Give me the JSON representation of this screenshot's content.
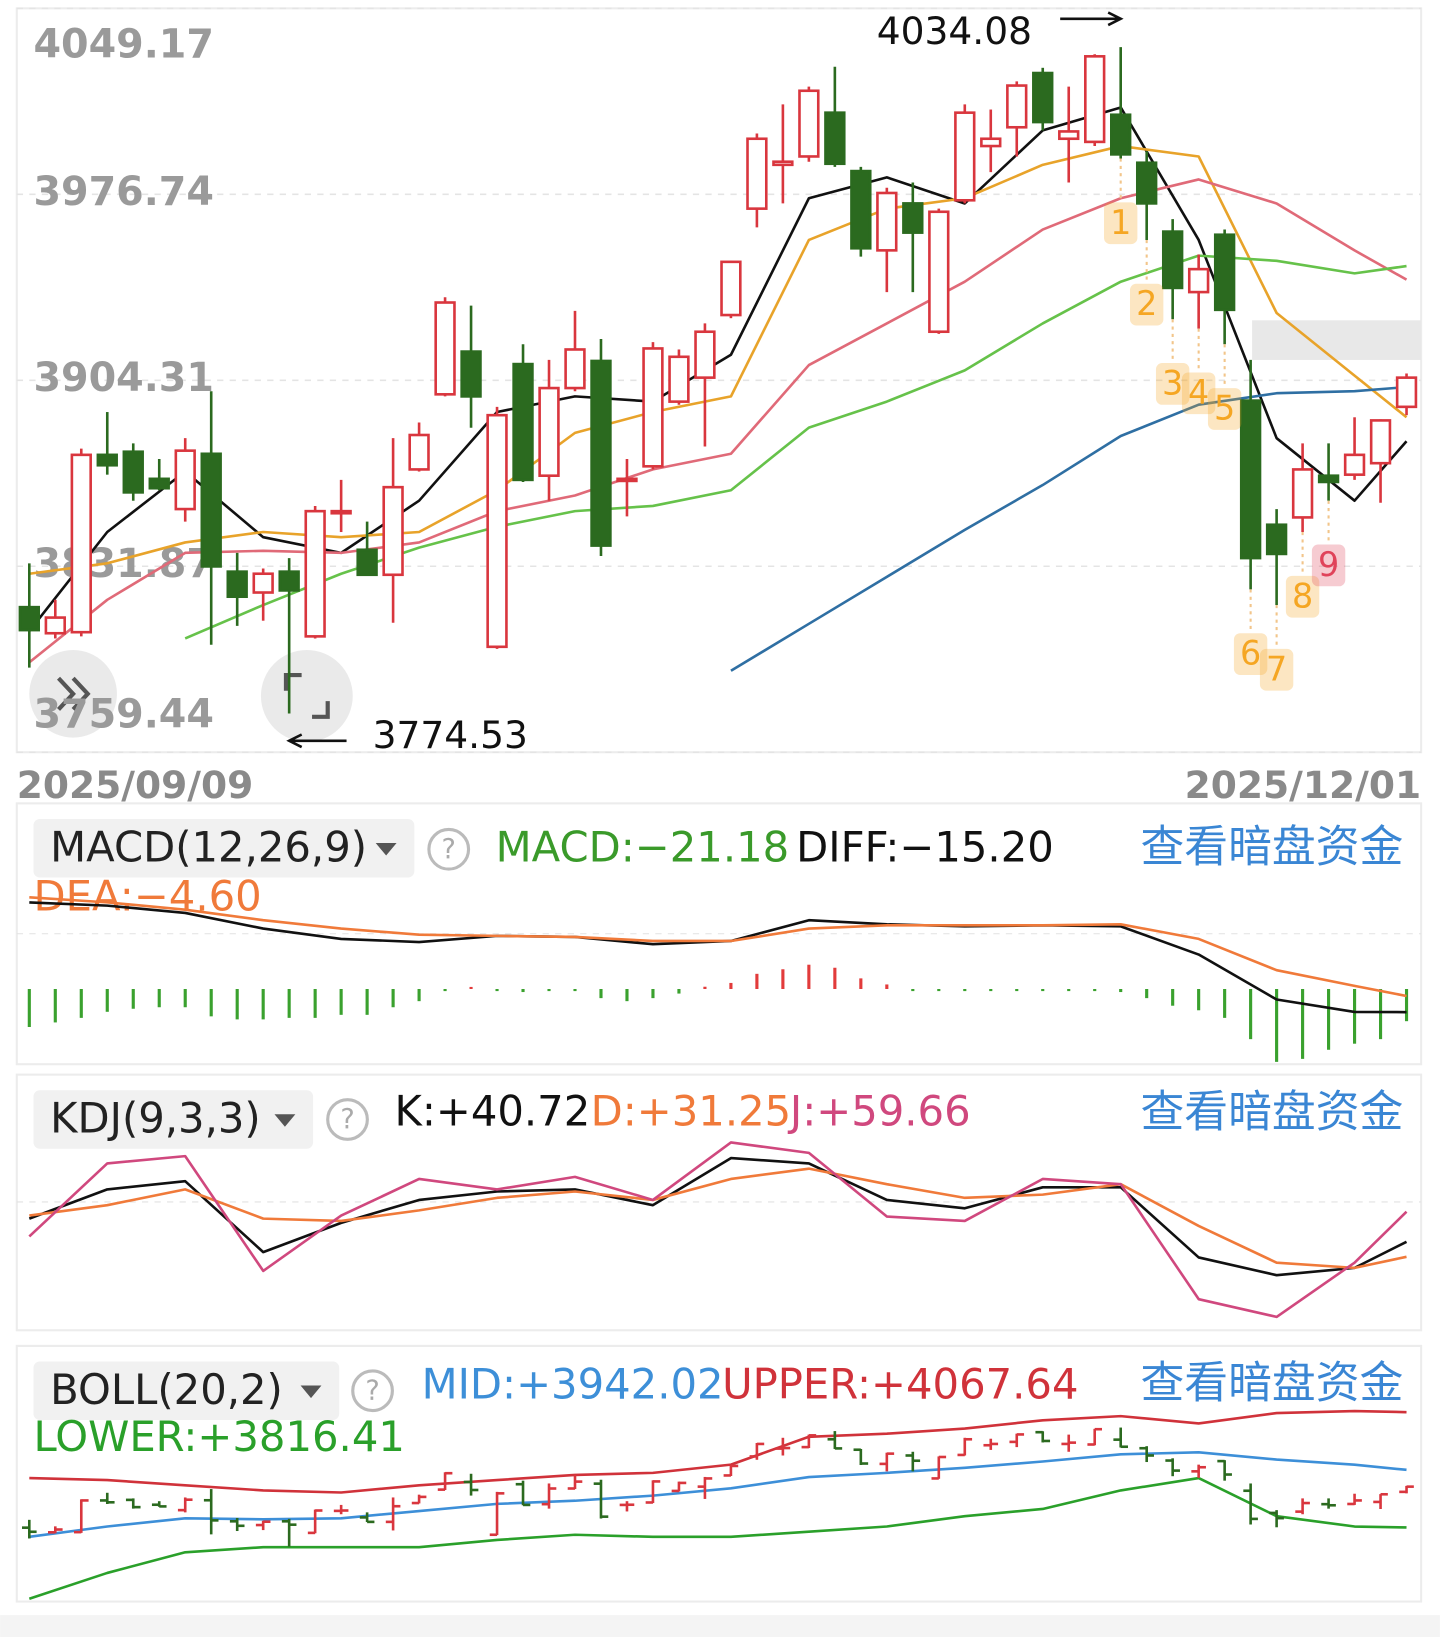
{
  "chart_data": [
    {
      "type": "candlestick",
      "categories": [
        "2025/09/09",
        null,
        null,
        null,
        null,
        null,
        null,
        null,
        null,
        null,
        null,
        null,
        null,
        null,
        null,
        null,
        null,
        null,
        null,
        null,
        null,
        null,
        null,
        null,
        null,
        null,
        null,
        null,
        null,
        null,
        null,
        null,
        null,
        null,
        null,
        null,
        null,
        null,
        null,
        null,
        null,
        null,
        null,
        null,
        null,
        null,
        null,
        null,
        null,
        null,
        null,
        null,
        null,
        "2025/12/01"
      ],
      "open": [
        3815.95,
        3805.79,
        3806.2,
        3875.27,
        3876.49,
        3865.93,
        3854.15,
        3875.68,
        3829.78,
        3821.65,
        3829.78,
        3804.57,
        3852.52,
        3838.3,
        3828.56,
        3869.59,
        3898.84,
        3915.49,
        3800.51,
        3910.62,
        3867.15,
        3901.28,
        3911.84,
        3865.52,
        3870.8,
        3896.0,
        3905.34,
        3929.72,
        3971.16,
        3988.23,
        3991.48,
        4008.54,
        3985.79,
        3954.91,
        3973.2,
        3923.22,
        3974.41,
        3995.54,
        4002.85,
        4023.98,
        3998.38,
        3997.16,
        4007.73,
        3989.04,
        3962.22,
        3938.66,
        3961.0,
        3896.4,
        3848.05,
        3850.9,
        3867.15,
        3867.55,
        3872.02,
        3893.97
      ],
      "high": [
        3833.02,
        3818.8,
        3877.71,
        3891.94,
        3879.74,
        3873.65,
        3881.77,
        3900.06,
        3837.08,
        3831.0,
        3835.06,
        3855.37,
        3865.52,
        3849.27,
        3881.77,
        3887.87,
        3936.63,
        3933.38,
        3893.97,
        3918.34,
        3912.24,
        3931.34,
        3920.37,
        3873.65,
        3919.15,
        3916.31,
        3926.47,
        3950.85,
        4000.42,
        4011.79,
        4018.7,
        4026.42,
        3987.42,
        3979.29,
        3981.32,
        3971.16,
        4011.79,
        4009.76,
        4020.73,
        4026.01,
        4018.7,
        4031.29,
        4034.08,
        3993.51,
        3967.1,
        3953.28,
        3963.03,
        3912.24,
        3854.15,
        3879.74,
        3879.74,
        3889.9,
        3889.09,
        3906.96
      ],
      "low": [
        3792.39,
        3803.76,
        3804.57,
        3867.55,
        3857.4,
        3861.46,
        3849.27,
        3801.32,
        3808.64,
        3810.67,
        3774.53,
        3803.76,
        3845.21,
        3828.15,
        3809.86,
        3868.77,
        3898.03,
        3885.84,
        3799.7,
        3864.71,
        3857.4,
        3900.06,
        3835.87,
        3851.3,
        3869.59,
        3894.78,
        3878.52,
        3928.5,
        3963.85,
        3973.2,
        3989.44,
        3987.42,
        3952.47,
        3938.66,
        3938.66,
        3922.4,
        3973.2,
        3985.38,
        3991.48,
        4001.64,
        3981.32,
        3995.54,
        3990.67,
        3958.97,
        3928.09,
        3924.43,
        3918.34,
        3822.87,
        3816.77,
        3845.21,
        3857.4,
        3865.52,
        3856.59,
        3890.72
      ],
      "close": [
        3807.01,
        3811.89,
        3875.27,
        3871.21,
        3860.65,
        3862.27,
        3876.9,
        3831.81,
        3820.02,
        3828.97,
        3822.46,
        3853.34,
        3853.34,
        3828.56,
        3862.68,
        3883.0,
        3934.6,
        3898.03,
        3890.72,
        3865.52,
        3901.28,
        3916.31,
        3839.93,
        3865.93,
        3916.71,
        3913.46,
        3923.22,
        3950.44,
        3998.38,
        3989.44,
        4017.07,
        3988.64,
        3955.72,
        3977.26,
        3961.82,
        3969.94,
        4008.54,
        3998.38,
        4019.1,
        4004.88,
        4001.23,
        4030.48,
        3992.29,
        3973.2,
        3940.29,
        3947.6,
        3931.75,
        3835.06,
        3836.68,
        3869.59,
        3864.71,
        3875.27,
        3888.68,
        3905.34
      ],
      "up_color": "#d9363e",
      "down_color": "#2b6a1f",
      "ylim": [
        3759.44,
        4049.17
      ],
      "yticks": [
        4049.17,
        3976.74,
        3904.31,
        3831.87,
        3759.44
      ],
      "grid": true,
      "high_label": 4034.08,
      "low_label": 3774.53,
      "x": [
        0,
        3,
        6,
        9,
        12,
        15,
        18,
        21,
        24,
        27,
        30,
        33,
        36,
        39,
        42,
        45,
        48,
        51,
        53
      ],
      "series": [
        {
          "color": "#111111",
          "values": [
            3806.61,
            3845.21,
            3868.77,
            3843.17,
            3837.08,
            3857.4,
            3891.94,
            3898.03,
            3896.0,
            3914.27,
            3975.22,
            3983.35,
            3973.2,
            4001.64,
            4010.57,
            3958.97,
            3881.77,
            3857.4,
            3880.56
          ]
        },
        {
          "color": "#e8a32a",
          "values": [
            3828.97,
            3833.02,
            3841.14,
            3845.21,
            3843.17,
            3845.21,
            3861.46,
            3883.81,
            3891.94,
            3898.03,
            3958.97,
            3971.16,
            3975.22,
            3988.23,
            3995.54,
            3991.48,
            3930.53,
            3906.15,
            3889.9
          ]
        },
        {
          "color": "#e06a78",
          "values": [
            3794.42,
            3818.8,
            3837.08,
            3837.89,
            3837.08,
            3841.14,
            3853.34,
            3859.43,
            3869.59,
            3875.68,
            3910.22,
            3926.47,
            3942.72,
            3963.03,
            3975.22,
            3982.54,
            3973.2,
            3954.91,
            3943.53
          ]
        },
        {
          "color": "#66c24a",
          "values": [
            null,
            null,
            3803.76,
            3816.77,
            3828.97,
            3839.12,
            3847.24,
            3853.34,
            3855.37,
            3861.46,
            3885.84,
            3896.0,
            3908.18,
            3926.47,
            3942.72,
            3952.88,
            3950.85,
            3945.97,
            3948.81
          ]
        },
        {
          "color": "#2f6fa3",
          "values": [
            null,
            null,
            null,
            null,
            null,
            null,
            null,
            null,
            null,
            3791.17,
            3809.45,
            3827.74,
            3846.02,
            3863.49,
            3882.59,
            3894.78,
            3899.25,
            3900.06,
            3901.68
          ]
        }
      ],
      "markers": [
        {
          "text": "1",
          "index": 42,
          "color": "#f5a623"
        },
        {
          "text": "2",
          "index": 43,
          "color": "#f5a623"
        },
        {
          "text": "3",
          "index": 44,
          "color": "#f5a623"
        },
        {
          "text": "4",
          "index": 45,
          "color": "#f5a623"
        },
        {
          "text": "5",
          "index": 46,
          "color": "#f5a623"
        },
        {
          "text": "6",
          "index": 47,
          "color": "#f5a623"
        },
        {
          "text": "7",
          "index": 48,
          "color": "#f5a623"
        },
        {
          "text": "8",
          "index": 49,
          "color": "#f5a623"
        },
        {
          "text": "9",
          "index": 50,
          "color": "#e0435a"
        }
      ]
    },
    {
      "type": "macd",
      "title": "MACD(12,26,9)",
      "link": "查看暗盘资金",
      "ylim": [
        -49.5,
        75.5
      ],
      "histogram": {
        "label": "MACD:−21.18",
        "label_color": "#3a9a2a",
        "up_color": "#e23b3b",
        "down_color": "#3aa12e",
        "values": [
          -25,
          -22,
          -19,
          -15,
          -13,
          -12,
          -12,
          -18,
          -20,
          -20,
          -19,
          -19,
          -17,
          -17,
          -12,
          -8,
          -1,
          0.5,
          -1,
          -2,
          -1,
          -1,
          -6,
          -8,
          -6,
          -3,
          1.5,
          4,
          10,
          13,
          16,
          14,
          7,
          3,
          -0.5,
          -1,
          -1,
          -1,
          -1,
          -1,
          -1,
          -1,
          -2,
          -6,
          -11,
          -14,
          -19,
          -33,
          -48,
          -46,
          -40,
          -36,
          -33,
          -21.18
        ]
      },
      "x": [
        0,
        3,
        6,
        9,
        12,
        15,
        18,
        21,
        24,
        27,
        30,
        33,
        36,
        39,
        42,
        45,
        48,
        51,
        53
      ],
      "series": [
        {
          "label": "DIFF:−15.20",
          "color": "#111111",
          "values": [
            57.0,
            54.9,
            50.1,
            39.8,
            33.0,
            30.9,
            35.0,
            34.3,
            29.5,
            31.6,
            45.3,
            42.6,
            41.2,
            41.9,
            41.2,
            22.7,
            -6.9,
            -15.1,
            -15.2
          ]
        },
        {
          "label": "DEA:−4.60",
          "color": "#f07a3a",
          "values": [
            60.4,
            57.0,
            52.2,
            45.3,
            39.8,
            35.7,
            35.0,
            34.3,
            31.6,
            31.6,
            39.8,
            41.9,
            41.9,
            41.9,
            42.6,
            33.0,
            12.4,
            2.1,
            -4.6
          ]
        }
      ]
    },
    {
      "type": "line",
      "title": "KDJ(9,3,3)",
      "link": "查看暗盘资金",
      "ylim": [
        -15,
        146
      ],
      "x": [
        0,
        3,
        6,
        9,
        12,
        15,
        18,
        21,
        24,
        27,
        30,
        33,
        36,
        39,
        42,
        45,
        48,
        51,
        53
      ],
      "series": [
        {
          "label": "K:+40.72",
          "color": "#111111",
          "values": [
            55.3,
            73.7,
            78.9,
            34.2,
            52.6,
            67.1,
            72.4,
            73.7,
            63.8,
            93.4,
            90.1,
            67.1,
            61.8,
            75.0,
            75.0,
            30.9,
            19.7,
            24.3,
            40.72
          ]
        },
        {
          "label": "D:+31.25",
          "color": "#f07a3a",
          "values": [
            57.2,
            63.8,
            73.7,
            55.3,
            53.9,
            60.5,
            68.4,
            72.4,
            67.1,
            80.3,
            86.8,
            77.0,
            68.4,
            70.4,
            77.0,
            50.7,
            27.6,
            24.3,
            31.25
          ]
        },
        {
          "label": "J:+59.66",
          "color": "#d0487e",
          "values": [
            44.1,
            90.1,
            94.7,
            22.4,
            57.2,
            80.3,
            73.7,
            81.6,
            67.1,
            103.3,
            96.7,
            56.6,
            53.9,
            80.3,
            77.0,
            4.6,
            -6.6,
            27.6,
            59.66
          ]
        }
      ]
    },
    {
      "type": "boll",
      "title": "BOLL(20,2)",
      "link": "查看暗盘资金",
      "ylim": [
        3655,
        4212
      ],
      "x": [
        0,
        3,
        6,
        9,
        12,
        15,
        18,
        21,
        24,
        27,
        30,
        33,
        36,
        39,
        42,
        45,
        48,
        51,
        53
      ],
      "series": [
        {
          "label": "MID:+3942.02",
          "color": "#3d8fd8",
          "values": [
            3795.9,
            3818.4,
            3836.4,
            3834.1,
            3836.4,
            3852.1,
            3867.9,
            3874.6,
            3885.8,
            3901.6,
            3926.3,
            3935.3,
            3946.5,
            3960.0,
            3975.7,
            3980.2,
            3964.5,
            3953.3,
            3942.02
          ]
        },
        {
          "label": "UPPER:+4067.64",
          "color": "#d0323a",
          "values": [
            3924.0,
            3919.6,
            3908.3,
            3897.1,
            3892.6,
            3908.3,
            3919.6,
            3930.8,
            3935.3,
            3953.3,
            4013.9,
            4020.7,
            4031.9,
            4049.9,
            4058.9,
            4043.1,
            4065.6,
            4070.1,
            4067.64
          ]
        },
        {
          "label": "LOWER:+3816.41",
          "color": "#2aa02a",
          "values": [
            3661.1,
            3717.3,
            3762.3,
            3773.5,
            3773.5,
            3773.5,
            3789.2,
            3800.5,
            3795.9,
            3795.9,
            3807.2,
            3818.4,
            3840.9,
            3856.6,
            3897.1,
            3924.0,
            3840.9,
            3818.4,
            3816.41
          ]
        }
      ]
    }
  ]
}
